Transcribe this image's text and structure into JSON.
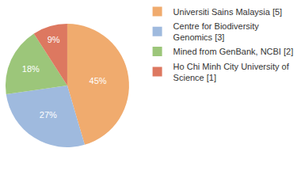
{
  "chart_data": {
    "type": "pie",
    "categories": [
      "Universiti Sains Malaysia [5]",
      "Centre for Biodiversity Genomics [3]",
      "Mined from GenBank, NCBI [2]",
      "Ho Chi Minh City University of Science [1]"
    ],
    "values": [
      45,
      27,
      18,
      9
    ],
    "value_labels": [
      "45%",
      "27%",
      "18%",
      "9%"
    ],
    "colors": [
      "#f0ab6e",
      "#9fbade",
      "#9cc67a",
      "#dd7860"
    ],
    "data_labels": true,
    "legend": "top-right"
  }
}
